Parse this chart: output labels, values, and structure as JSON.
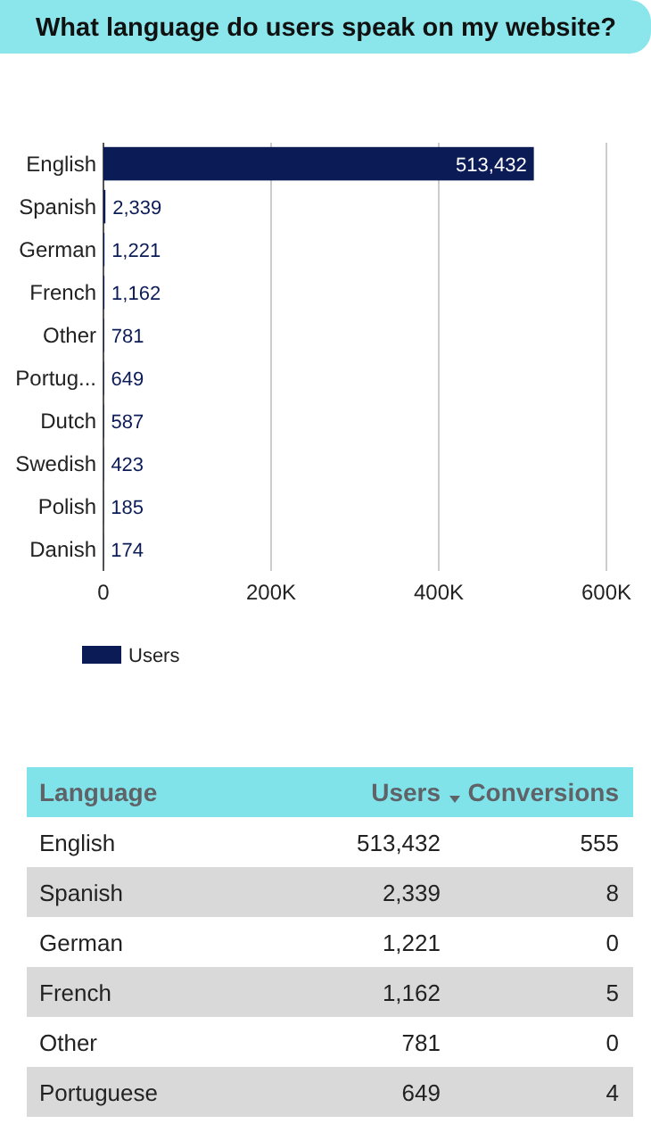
{
  "chart_data": [
    {
      "type": "bar",
      "orientation": "horizontal",
      "title": "What language do users speak on my website?",
      "categories": [
        "English",
        "Spanish",
        "German",
        "French",
        "Other",
        "Portug...",
        "Dutch",
        "Swedish",
        "Polish",
        "Danish"
      ],
      "series": [
        {
          "name": "Users",
          "color": "#0b1b56",
          "values": [
            513432,
            2339,
            1221,
            1162,
            781,
            649,
            587,
            423,
            185,
            174
          ],
          "value_labels": [
            "513,432",
            "2,339",
            "1,221",
            "1,162",
            "781",
            "649",
            "587",
            "423",
            "185",
            "174"
          ]
        }
      ],
      "xlim": [
        0,
        600000
      ],
      "xticks": [
        0,
        {
          "value": 200000,
          "label": "200K"
        },
        {
          "value": 400000,
          "label": "400K"
        },
        {
          "value": 600000,
          "label": "600K"
        }
      ],
      "grid": "x",
      "legend": "bottom left"
    },
    {
      "type": "other",
      "xlabel": "Language",
      "categories": [
        "English",
        "Spanish",
        "German",
        "French",
        "Other",
        "Portuguese"
      ],
      "series": [
        {
          "name": "Users",
          "values": [
            513432,
            2339,
            1221,
            1162,
            781,
            649
          ],
          "value_labels": [
            "513,432",
            "2,339",
            "1,221",
            "1,162",
            "781",
            "649"
          ]
        },
        {
          "name": "Conversions",
          "values": [
            555,
            8,
            0,
            5,
            0,
            4
          ],
          "value_labels": [
            "555",
            "8",
            "0",
            "5",
            "0",
            "4"
          ]
        }
      ]
    }
  ]
}
